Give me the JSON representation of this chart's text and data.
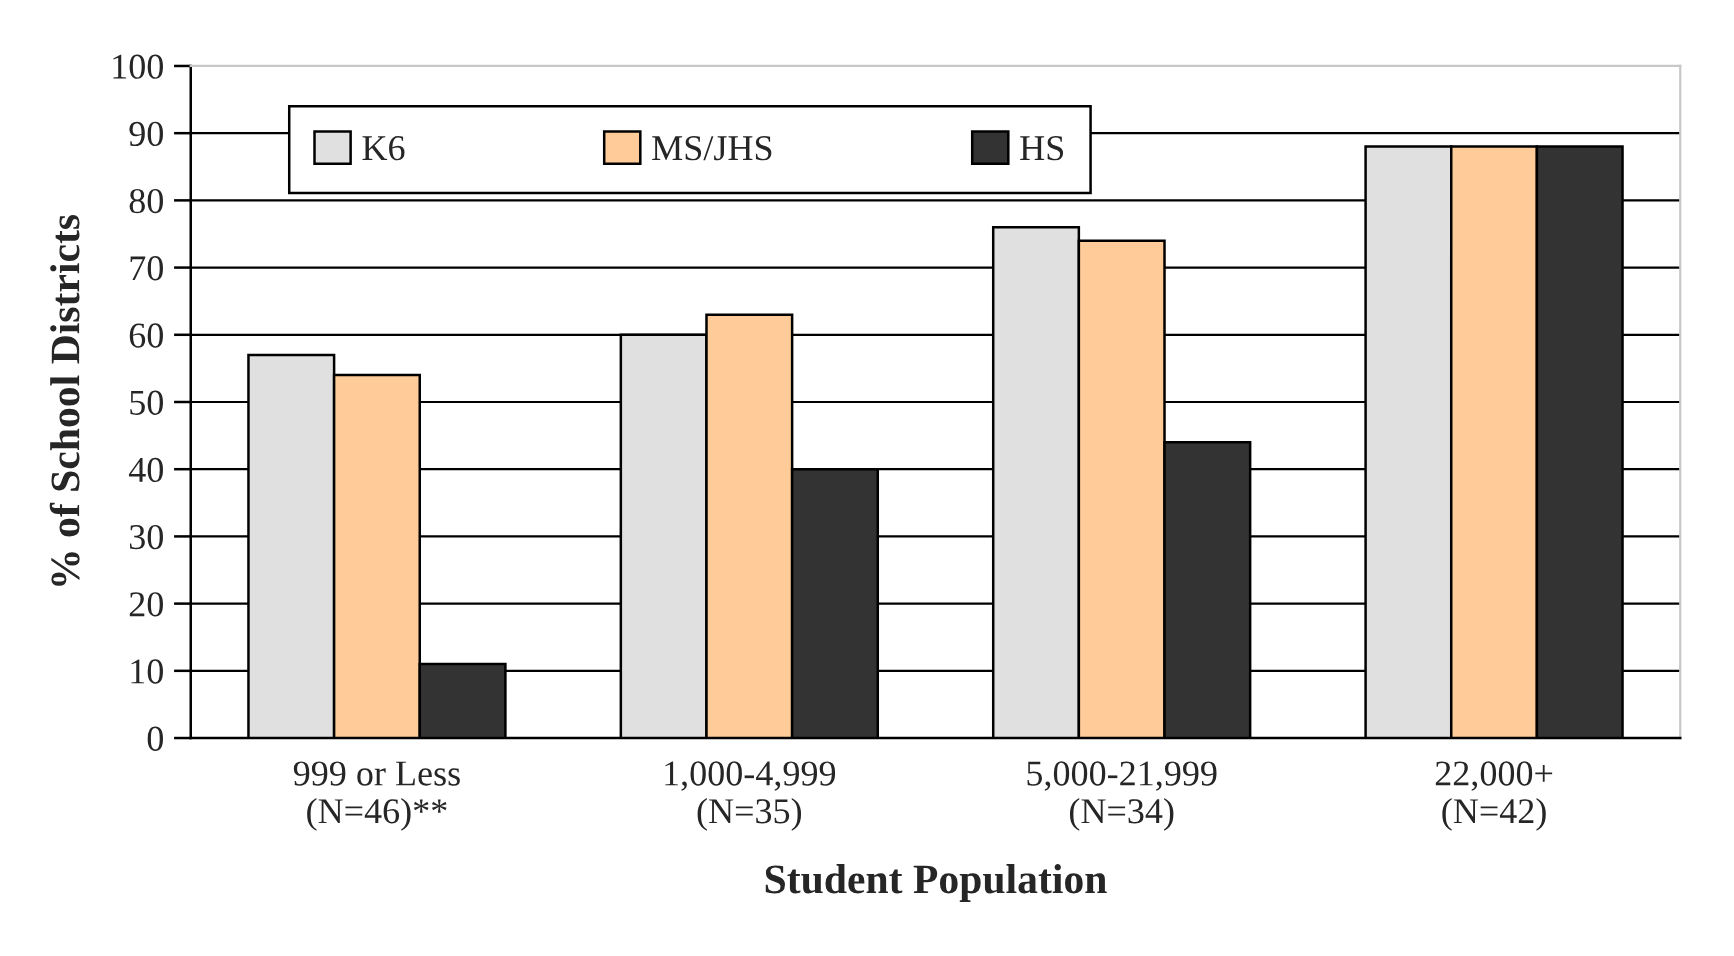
{
  "chart_data": {
    "type": "bar",
    "xlabel": "Student Population",
    "ylabel": "% of School Districts",
    "categories": [
      "999 or Less\n(N=46)**",
      "1,000-4,999\n(N=35)",
      "5,000-21,999\n(N=34)",
      "22,000+\n(N=42)"
    ],
    "series": [
      {
        "name": "K6",
        "color": "#e0e0e0",
        "values": [
          57,
          60,
          76,
          88
        ]
      },
      {
        "name": "MS/JHS",
        "color": "#ffcc99",
        "values": [
          54,
          63,
          74,
          88
        ]
      },
      {
        "name": "HS",
        "color": "#333333",
        "values": [
          11,
          40,
          44,
          88
        ]
      }
    ],
    "ylim": [
      0,
      100
    ],
    "yticks": [
      0,
      10,
      20,
      30,
      40,
      50,
      60,
      70,
      80,
      90,
      100
    ],
    "grid": "y",
    "legend": "top left"
  }
}
